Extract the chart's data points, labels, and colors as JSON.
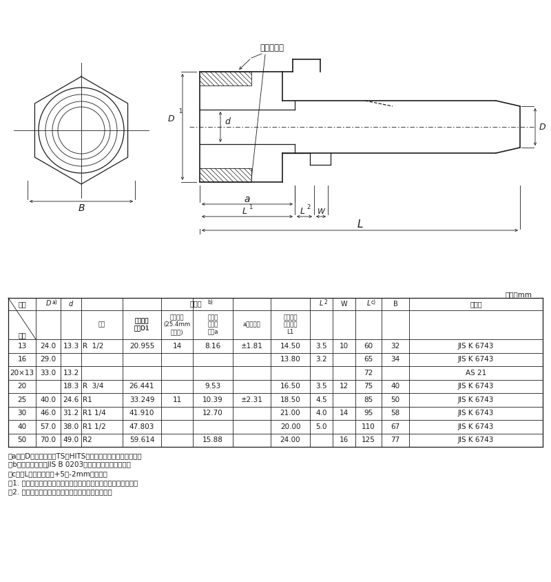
{
  "bg_color": "#ffffff",
  "line_color": "#1a1a1a",
  "unit_label": "単位：mm",
  "table_data": [
    [
      "13",
      "24.0",
      "13.3",
      "R  1/2",
      "20.955",
      "14",
      "8.16",
      "±1.81",
      "14.50",
      "3.5",
      "10",
      "60",
      "32",
      "JIS K 6743"
    ],
    [
      "16",
      "29.0",
      "",
      "",
      "",
      "",
      "",
      "",
      "13.80",
      "3.2",
      "",
      "65",
      "34",
      "JIS K 6743"
    ],
    [
      "20×13",
      "33.0",
      "13.2",
      "",
      "",
      "",
      "",
      "",
      "",
      "",
      "",
      "72",
      "",
      "AS 21"
    ],
    [
      "20",
      "",
      "18.3",
      "R  3/4",
      "26.441",
      "",
      "9.53",
      "",
      "16.50",
      "3.5",
      "12",
      "75",
      "40",
      "JIS K 6743"
    ],
    [
      "25",
      "40.0",
      "24.6",
      "R1",
      "33.249",
      "11",
      "10.39",
      "±2.31",
      "18.50",
      "4.5",
      "",
      "85",
      "50",
      "JIS K 6743"
    ],
    [
      "30",
      "46.0",
      "31.2",
      "R1 1/4",
      "41.910",
      "",
      "12.70",
      "",
      "21.00",
      "4.0",
      "14",
      "95",
      "58",
      "JIS K 6743"
    ],
    [
      "40",
      "57.0",
      "38.0",
      "R1 1/2",
      "47.803",
      "",
      "",
      "",
      "20.00",
      "5.0",
      "",
      "110",
      "67",
      "JIS K 6743"
    ],
    [
      "50",
      "70.0",
      "49.0",
      "R2",
      "59.614",
      "",
      "15.88",
      "",
      "24.00",
      "",
      "16",
      "125",
      "77",
      "JIS K 6743"
    ]
  ],
  "notes": [
    "注a）　Dの許容差は、TS・HITS継手受口共通寸法図による。",
    "注b）　ねじ部は、JIS B 0203のテーパおねじとする。",
    "注c）　Lの許容差は、+5／-2mmとする。",
    "注1. 六角部及び内部の接水部は、硬質ポリ塗化ビニル製である。",
    "注2. 管端防食継手（コア付き）に対応しています。"
  ],
  "insert_label": "インサート",
  "hdr_kisho": "記号",
  "hdr_yobikei": "呼径",
  "hdr_neji": "ねじ部",
  "hdr_yobi": "呼び",
  "hdr_kijun_d1": "基準径の\n外径D1",
  "hdr_neji_yama": "ねじ山数\n(25.4mm\nにつき)",
  "hdr_kijun_a": "基準径\nまでの\n長さa",
  "hdr_a_tol": "aの許容差",
  "hdr_yuukou": "有効ねじ\n部の長さ\nL1",
  "hdr_kisoku": "規　格"
}
